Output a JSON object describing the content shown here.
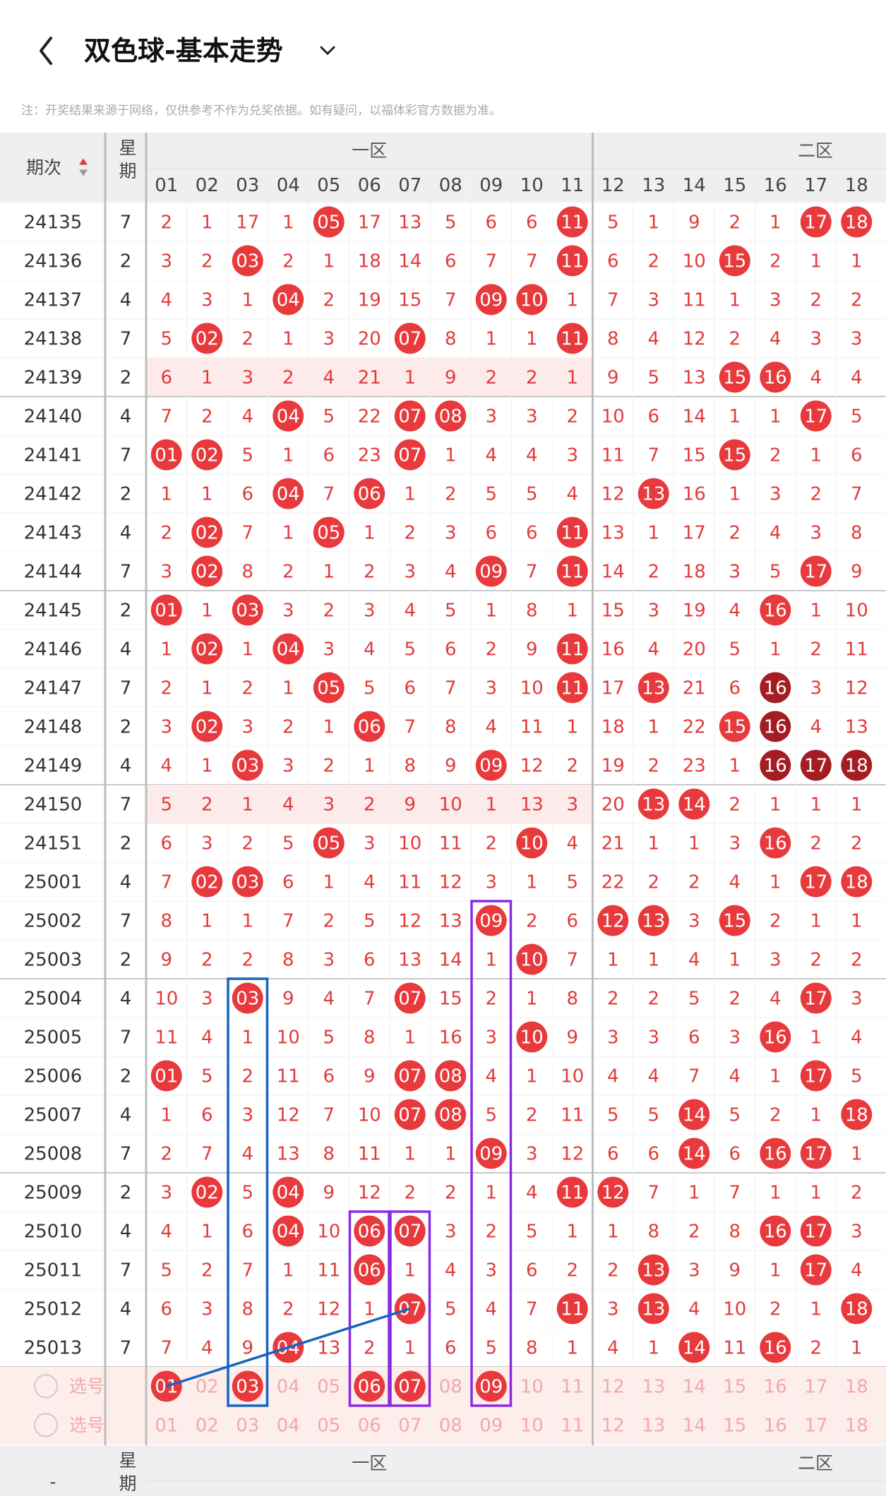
{
  "header": {
    "title": "双色球-基本走势"
  },
  "note": "注：开奖结果来源于网络，仅供参考不作为兑奖依据。如有疑问，以福体彩官方数据为准。",
  "table": {
    "period_header": "期次",
    "weekday_header": "星期",
    "zone1": "一区",
    "zone2": "二区",
    "columns": [
      "01",
      "02",
      "03",
      "04",
      "05",
      "06",
      "07",
      "08",
      "09",
      "10",
      "11",
      "12",
      "13",
      "14",
      "15",
      "16",
      "17",
      "18"
    ],
    "rows": [
      {
        "period": "24135",
        "weekday": "7",
        "cells": [
          "2",
          "1",
          "17",
          "1",
          {
            "text": "05",
            "ball": "red"
          },
          "17",
          "13",
          "5",
          "6",
          "6",
          {
            "text": "11",
            "ball": "red"
          },
          "5",
          "1",
          "9",
          "2",
          "1",
          {
            "text": "17",
            "ball": "red"
          },
          {
            "text": "18",
            "ball": "red"
          }
        ]
      },
      {
        "period": "24136",
        "weekday": "2",
        "cells": [
          "3",
          "2",
          {
            "text": "03",
            "ball": "red"
          },
          "2",
          "1",
          "18",
          "14",
          "6",
          "7",
          "7",
          {
            "text": "11",
            "ball": "red"
          },
          "6",
          "2",
          "10",
          {
            "text": "15",
            "ball": "red"
          },
          "2",
          "1",
          "1"
        ]
      },
      {
        "period": "24137",
        "weekday": "4",
        "cells": [
          "4",
          "3",
          "1",
          {
            "text": "04",
            "ball": "red"
          },
          "2",
          "19",
          "15",
          "7",
          {
            "text": "09",
            "ball": "red"
          },
          {
            "text": "10",
            "ball": "red"
          },
          "1",
          "7",
          "3",
          "11",
          "1",
          "3",
          "2",
          "2"
        ]
      },
      {
        "period": "24138",
        "weekday": "7",
        "cells": [
          "5",
          {
            "text": "02",
            "ball": "red"
          },
          "2",
          "1",
          "3",
          "20",
          {
            "text": "07",
            "ball": "red"
          },
          "8",
          "1",
          "1",
          {
            "text": "11",
            "ball": "red"
          },
          "8",
          "4",
          "12",
          "2",
          "4",
          "3",
          "3"
        ]
      },
      {
        "period": "24139",
        "weekday": "2",
        "highlight": true,
        "cells": [
          "6",
          "1",
          "3",
          "2",
          "4",
          "21",
          "1",
          "9",
          "2",
          "2",
          "1",
          "9",
          "5",
          "13",
          {
            "text": "15",
            "ball": "red"
          },
          {
            "text": "16",
            "ball": "red"
          },
          "4",
          "4"
        ]
      },
      {
        "period": "24140",
        "weekday": "4",
        "cells": [
          "7",
          "2",
          "4",
          {
            "text": "04",
            "ball": "red"
          },
          "5",
          "22",
          {
            "text": "07",
            "ball": "red"
          },
          {
            "text": "08",
            "ball": "red"
          },
          "3",
          "3",
          "2",
          "10",
          "6",
          "14",
          "1",
          "1",
          {
            "text": "17",
            "ball": "red"
          },
          "5"
        ]
      },
      {
        "period": "24141",
        "weekday": "7",
        "cells": [
          {
            "text": "01",
            "ball": "red"
          },
          {
            "text": "02",
            "ball": "red"
          },
          "5",
          "1",
          "6",
          "23",
          {
            "text": "07",
            "ball": "red"
          },
          "1",
          "4",
          "4",
          "3",
          "11",
          "7",
          "15",
          {
            "text": "15",
            "ball": "red"
          },
          "2",
          "1",
          "6"
        ]
      },
      {
        "period": "24142",
        "weekday": "2",
        "cells": [
          "1",
          "1",
          "6",
          {
            "text": "04",
            "ball": "red"
          },
          "7",
          {
            "text": "06",
            "ball": "red"
          },
          "1",
          "2",
          "5",
          "5",
          "4",
          "12",
          {
            "text": "13",
            "ball": "red"
          },
          "16",
          "1",
          "3",
          "2",
          "7"
        ]
      },
      {
        "period": "24143",
        "weekday": "4",
        "cells": [
          "2",
          {
            "text": "02",
            "ball": "red"
          },
          "7",
          "1",
          {
            "text": "05",
            "ball": "red"
          },
          "1",
          "2",
          "3",
          "6",
          "6",
          {
            "text": "11",
            "ball": "red"
          },
          "13",
          "1",
          "17",
          "2",
          "4",
          "3",
          "8"
        ]
      },
      {
        "period": "24144",
        "weekday": "7",
        "cells": [
          "3",
          {
            "text": "02",
            "ball": "red"
          },
          "8",
          "2",
          "1",
          "2",
          "3",
          "4",
          {
            "text": "09",
            "ball": "red"
          },
          "7",
          {
            "text": "11",
            "ball": "red"
          },
          "14",
          "2",
          "18",
          "3",
          "5",
          {
            "text": "17",
            "ball": "red"
          },
          "9"
        ]
      },
      {
        "period": "24145",
        "weekday": "2",
        "cells": [
          {
            "text": "01",
            "ball": "red"
          },
          "1",
          {
            "text": "03",
            "ball": "red"
          },
          "3",
          "2",
          "3",
          "4",
          "5",
          "1",
          "8",
          "1",
          "15",
          "3",
          "19",
          "4",
          {
            "text": "16",
            "ball": "red"
          },
          "1",
          "10"
        ]
      },
      {
        "period": "24146",
        "weekday": "4",
        "cells": [
          "1",
          {
            "text": "02",
            "ball": "red"
          },
          "1",
          {
            "text": "04",
            "ball": "red"
          },
          "3",
          "4",
          "5",
          "6",
          "2",
          "9",
          {
            "text": "11",
            "ball": "red"
          },
          "16",
          "4",
          "20",
          "5",
          "1",
          "2",
          "11"
        ]
      },
      {
        "period": "24147",
        "weekday": "7",
        "cells": [
          "2",
          "1",
          "2",
          "1",
          {
            "text": "05",
            "ball": "red"
          },
          "5",
          "6",
          "7",
          "3",
          "10",
          {
            "text": "11",
            "ball": "red"
          },
          "17",
          {
            "text": "13",
            "ball": "red"
          },
          "21",
          "6",
          {
            "text": "16",
            "ball": "dark"
          },
          "3",
          "12"
        ]
      },
      {
        "period": "24148",
        "weekday": "2",
        "cells": [
          "3",
          {
            "text": "02",
            "ball": "red"
          },
          "3",
          "2",
          "1",
          {
            "text": "06",
            "ball": "red"
          },
          "7",
          "8",
          "4",
          "11",
          "1",
          "18",
          "1",
          "22",
          {
            "text": "15",
            "ball": "red"
          },
          {
            "text": "16",
            "ball": "dark"
          },
          "4",
          "13"
        ]
      },
      {
        "period": "24149",
        "weekday": "4",
        "cells": [
          "4",
          "1",
          {
            "text": "03",
            "ball": "red"
          },
          "3",
          "2",
          "1",
          "8",
          "9",
          {
            "text": "09",
            "ball": "red"
          },
          "12",
          "2",
          "19",
          "2",
          "23",
          "1",
          {
            "text": "16",
            "ball": "dark"
          },
          {
            "text": "17",
            "ball": "dark"
          },
          {
            "text": "18",
            "ball": "dark"
          }
        ]
      },
      {
        "period": "24150",
        "weekday": "7",
        "highlight": true,
        "cells": [
          "5",
          "2",
          "1",
          "4",
          "3",
          "2",
          "9",
          "10",
          "1",
          "13",
          "3",
          "20",
          {
            "text": "13",
            "ball": "red"
          },
          {
            "text": "14",
            "ball": "red"
          },
          "2",
          "1",
          "1",
          "1"
        ]
      },
      {
        "period": "24151",
        "weekday": "2",
        "cells": [
          "6",
          "3",
          "2",
          "5",
          {
            "text": "05",
            "ball": "red"
          },
          "3",
          "10",
          "11",
          "2",
          {
            "text": "10",
            "ball": "red"
          },
          "4",
          "21",
          "1",
          "1",
          "3",
          {
            "text": "16",
            "ball": "red"
          },
          "2",
          "2"
        ]
      },
      {
        "period": "25001",
        "weekday": "4",
        "cells": [
          "7",
          {
            "text": "02",
            "ball": "red"
          },
          {
            "text": "03",
            "ball": "red"
          },
          "6",
          "1",
          "4",
          "11",
          "12",
          "3",
          "1",
          "5",
          "22",
          "2",
          "2",
          "4",
          "1",
          {
            "text": "17",
            "ball": "red"
          },
          {
            "text": "18",
            "ball": "red"
          }
        ]
      },
      {
        "period": "25002",
        "weekday": "7",
        "cells": [
          "8",
          "1",
          "1",
          "7",
          "2",
          "5",
          "12",
          "13",
          {
            "text": "09",
            "ball": "red"
          },
          "2",
          "6",
          {
            "text": "12",
            "ball": "red"
          },
          {
            "text": "13",
            "ball": "red"
          },
          "3",
          {
            "text": "15",
            "ball": "red"
          },
          "2",
          "1",
          "1"
        ]
      },
      {
        "period": "25003",
        "weekday": "2",
        "cells": [
          "9",
          "2",
          "2",
          "8",
          "3",
          "6",
          "13",
          "14",
          "1",
          {
            "text": "10",
            "ball": "red"
          },
          "7",
          "1",
          "1",
          "4",
          "1",
          "3",
          "2",
          "2"
        ]
      },
      {
        "period": "25004",
        "weekday": "4",
        "cells": [
          "10",
          "3",
          {
            "text": "03",
            "ball": "red"
          },
          "9",
          "4",
          "7",
          {
            "text": "07",
            "ball": "red"
          },
          "15",
          "2",
          "1",
          "8",
          "2",
          "2",
          "5",
          "2",
          "4",
          {
            "text": "17",
            "ball": "red"
          },
          "3"
        ]
      },
      {
        "period": "25005",
        "weekday": "7",
        "cells": [
          "11",
          "4",
          "1",
          "10",
          "5",
          "8",
          "1",
          "16",
          "3",
          {
            "text": "10",
            "ball": "red"
          },
          "9",
          "3",
          "3",
          "6",
          "3",
          {
            "text": "16",
            "ball": "red"
          },
          "1",
          "4"
        ]
      },
      {
        "period": "25006",
        "weekday": "2",
        "cells": [
          {
            "text": "01",
            "ball": "red"
          },
          "5",
          "2",
          "11",
          "6",
          "9",
          {
            "text": "07",
            "ball": "red"
          },
          {
            "text": "08",
            "ball": "red"
          },
          "4",
          "1",
          "10",
          "4",
          "4",
          "7",
          "4",
          "1",
          {
            "text": "17",
            "ball": "red"
          },
          "5"
        ]
      },
      {
        "period": "25007",
        "weekday": "4",
        "cells": [
          "1",
          "6",
          "3",
          "12",
          "7",
          "10",
          {
            "text": "07",
            "ball": "red"
          },
          {
            "text": "08",
            "ball": "red"
          },
          "5",
          "2",
          "11",
          "5",
          "5",
          {
            "text": "14",
            "ball": "red"
          },
          "5",
          "2",
          "1",
          {
            "text": "18",
            "ball": "red"
          }
        ]
      },
      {
        "period": "25008",
        "weekday": "7",
        "cells": [
          "2",
          "7",
          "4",
          "13",
          "8",
          "11",
          "1",
          "1",
          {
            "text": "09",
            "ball": "red"
          },
          "3",
          "12",
          "6",
          "6",
          {
            "text": "14",
            "ball": "red"
          },
          "6",
          {
            "text": "16",
            "ball": "red"
          },
          {
            "text": "17",
            "ball": "red"
          },
          "1"
        ]
      },
      {
        "period": "25009",
        "weekday": "2",
        "cells": [
          "3",
          {
            "text": "02",
            "ball": "red"
          },
          "5",
          {
            "text": "04",
            "ball": "red"
          },
          "9",
          "12",
          "2",
          "2",
          "1",
          "4",
          {
            "text": "11",
            "ball": "red"
          },
          {
            "text": "12",
            "ball": "red"
          },
          "7",
          "1",
          "7",
          "1",
          "1",
          "2"
        ]
      },
      {
        "period": "25010",
        "weekday": "4",
        "cells": [
          "4",
          "1",
          "6",
          {
            "text": "04",
            "ball": "red"
          },
          "10",
          {
            "text": "06",
            "ball": "red"
          },
          {
            "text": "07",
            "ball": "red"
          },
          "3",
          "2",
          "5",
          "1",
          "1",
          "8",
          "2",
          "8",
          {
            "text": "16",
            "ball": "red"
          },
          {
            "text": "17",
            "ball": "red"
          },
          "3"
        ]
      },
      {
        "period": "25011",
        "weekday": "7",
        "cells": [
          "5",
          "2",
          "7",
          "1",
          "11",
          {
            "text": "06",
            "ball": "red"
          },
          "1",
          "4",
          "3",
          "6",
          "2",
          "2",
          {
            "text": "13",
            "ball": "red"
          },
          "3",
          "9",
          "1",
          {
            "text": "17",
            "ball": "red"
          },
          "4"
        ]
      },
      {
        "period": "25012",
        "weekday": "4",
        "cells": [
          "6",
          "3",
          "8",
          "2",
          "12",
          "1",
          {
            "text": "07",
            "ball": "red"
          },
          "5",
          "4",
          "7",
          {
            "text": "11",
            "ball": "red"
          },
          "3",
          {
            "text": "13",
            "ball": "red"
          },
          "4",
          "10",
          "2",
          "1",
          {
            "text": "18",
            "ball": "red"
          }
        ]
      },
      {
        "period": "25013",
        "weekday": "7",
        "cells": [
          "7",
          "4",
          "9",
          {
            "text": "04",
            "ball": "red"
          },
          "13",
          "2",
          "1",
          "6",
          "5",
          "8",
          "1",
          "4",
          "1",
          {
            "text": "14",
            "ball": "red"
          },
          "11",
          {
            "text": "16",
            "ball": "red"
          },
          "2",
          "1"
        ]
      }
    ],
    "select_rows": [
      {
        "label": "选号",
        "cells": [
          {
            "text": "01",
            "ball": "red"
          },
          "02",
          {
            "text": "03",
            "ball": "red"
          },
          "04",
          "05",
          {
            "text": "06",
            "ball": "red"
          },
          {
            "text": "07",
            "ball": "red"
          },
          "08",
          {
            "text": "09",
            "ball": "red"
          },
          "10",
          "11",
          "12",
          "13",
          "14",
          "15",
          "16",
          "17",
          "18"
        ]
      },
      {
        "label": "选号",
        "cells": [
          "01",
          "02",
          "03",
          "04",
          "05",
          "06",
          "07",
          "08",
          "09",
          "10",
          "11",
          "12",
          "13",
          "14",
          "15",
          "16",
          "17",
          "18"
        ]
      }
    ],
    "footer_period": "-"
  }
}
